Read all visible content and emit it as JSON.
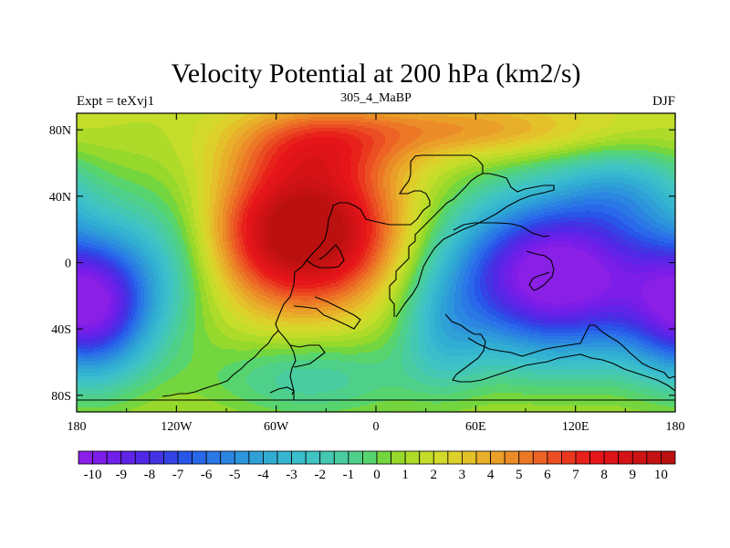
{
  "title": "Velocity Potential at 200 hPa (km2/s)",
  "subtitle_left": "Expt = teXvj1",
  "subtitle_center": "305_4_MaBP",
  "subtitle_right": "DJF",
  "chart_data": {
    "type": "heatmap",
    "projection": "cylindrical-equidistant",
    "variable": "Velocity Potential",
    "level": "200 hPa",
    "units": "km2/s",
    "xlim": [
      -180,
      180
    ],
    "ylim": [
      -90,
      90
    ],
    "x_ticks": [
      {
        "value": -180,
        "label": "180"
      },
      {
        "value": -120,
        "label": "120W"
      },
      {
        "value": -60,
        "label": "60W"
      },
      {
        "value": 0,
        "label": "0"
      },
      {
        "value": 60,
        "label": "60E"
      },
      {
        "value": 120,
        "label": "120E"
      },
      {
        "value": 180,
        "label": "180"
      }
    ],
    "y_ticks": [
      {
        "value": 80,
        "label": "80N"
      },
      {
        "value": 40,
        "label": "40N"
      },
      {
        "value": 0,
        "label": "0"
      },
      {
        "value": -40,
        "label": "40S"
      },
      {
        "value": -80,
        "label": "80S"
      }
    ],
    "colorbar": {
      "orientation": "horizontal",
      "range": [
        -10.5,
        10.5
      ],
      "step": 0.5,
      "label_values": [
        -10,
        -9,
        -8,
        -7,
        -6,
        -5,
        -4,
        -3,
        -2,
        -1,
        0,
        1,
        2,
        3,
        4,
        5,
        6,
        7,
        8,
        9,
        10
      ],
      "labels": [
        "-10",
        "-9",
        "-8",
        "-7",
        "-6",
        "-5",
        "-4",
        "-3",
        "-2",
        "-1",
        "0",
        "1",
        "2",
        "3",
        "4",
        "5",
        "6",
        "7",
        "8",
        "9",
        "10"
      ],
      "colors": [
        "#8a1fe6",
        "#7d1de8",
        "#6f1fe8",
        "#6024e8",
        "#5028e6",
        "#4233e3",
        "#3543e6",
        "#2856e8",
        "#2a68ea",
        "#2a78e6",
        "#2b86e0",
        "#2c95db",
        "#2fa1d6",
        "#31acd3",
        "#35b5d0",
        "#3abecc",
        "#3fc3c3",
        "#44c8b3",
        "#49cca0",
        "#4fd08a",
        "#58d46e",
        "#74d63f",
        "#96d82b",
        "#aedb2a",
        "#c4dc2a",
        "#d3d92b",
        "#ddd02b",
        "#e4c12a",
        "#e8b02a",
        "#ea9f29",
        "#eb8c28",
        "#ec7826",
        "#ec6325",
        "#eb4e22",
        "#ea381f",
        "#e8211a",
        "#e6151a",
        "#de1418",
        "#d51316",
        "#cc1214",
        "#c41112",
        "#bb1010"
      ]
    },
    "field_extrema": [
      {
        "name": "velocity-potential-minimum",
        "lon": 110,
        "lat": -10,
        "value": -10
      },
      {
        "name": "velocity-potential-maximum",
        "lon": -40,
        "lat": 20,
        "value": 10
      }
    ]
  }
}
